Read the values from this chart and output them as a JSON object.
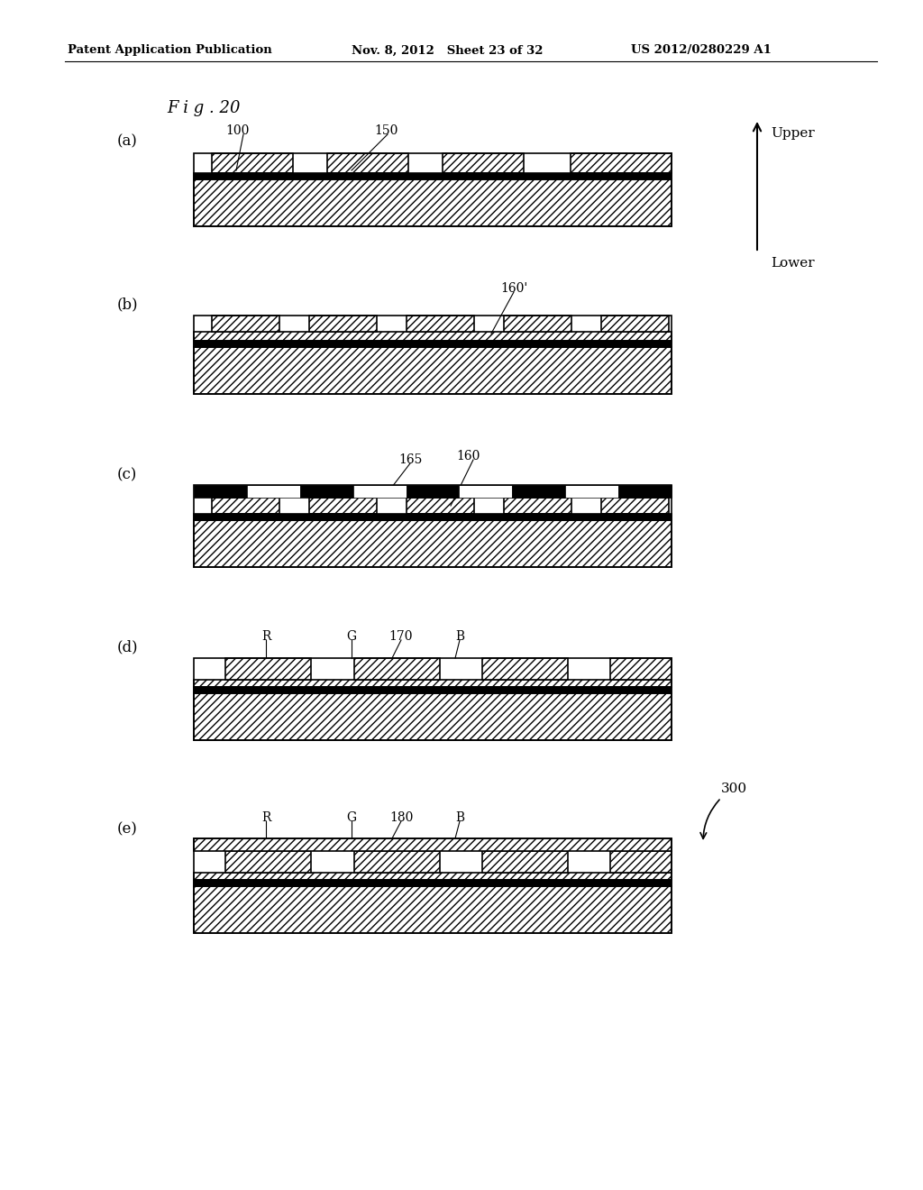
{
  "header_left": "Patent Application Publication",
  "header_mid": "Nov. 8, 2012   Sheet 23 of 32",
  "header_right": "US 2012/0280229 A1",
  "fig_label": "F i g . 20",
  "bg_color": "#ffffff",
  "lc": "#000000",
  "subfig_labels": [
    "(a)",
    "(b)",
    "(c)",
    "(d)",
    "(e)"
  ],
  "upper_text": "Upper",
  "lower_text": "Lower",
  "label_300": "300"
}
